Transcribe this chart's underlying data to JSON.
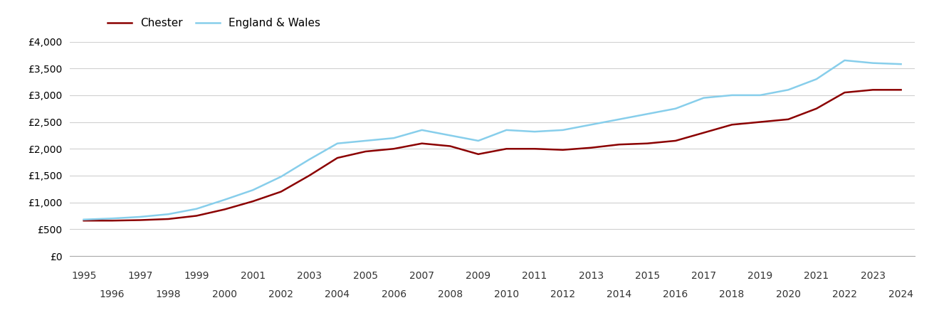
{
  "chester": {
    "years": [
      1995,
      1996,
      1997,
      1998,
      1999,
      2000,
      2001,
      2002,
      2003,
      2004,
      2005,
      2006,
      2007,
      2008,
      2009,
      2010,
      2011,
      2012,
      2013,
      2014,
      2015,
      2016,
      2017,
      2018,
      2019,
      2020,
      2021,
      2022,
      2023,
      2024
    ],
    "values": [
      660,
      660,
      670,
      690,
      750,
      870,
      1020,
      1200,
      1500,
      1830,
      1950,
      2000,
      2100,
      2050,
      1900,
      2000,
      2000,
      1980,
      2020,
      2080,
      2100,
      2150,
      2300,
      2450,
      2500,
      2550,
      2750,
      3050,
      3100,
      3100
    ]
  },
  "england_wales": {
    "years": [
      1995,
      1996,
      1997,
      1998,
      1999,
      2000,
      2001,
      2002,
      2003,
      2004,
      2005,
      2006,
      2007,
      2008,
      2009,
      2010,
      2011,
      2012,
      2013,
      2014,
      2015,
      2016,
      2017,
      2018,
      2019,
      2020,
      2021,
      2022,
      2023,
      2024
    ],
    "values": [
      680,
      700,
      730,
      780,
      880,
      1050,
      1230,
      1480,
      1800,
      2100,
      2150,
      2200,
      2350,
      2250,
      2150,
      2350,
      2320,
      2350,
      2450,
      2550,
      2650,
      2750,
      2950,
      3000,
      3000,
      3100,
      3300,
      3650,
      3600,
      3580
    ]
  },
  "chester_color": "#8b0000",
  "england_wales_color": "#87ceeb",
  "chester_label": "Chester",
  "england_wales_label": "England & Wales",
  "ylim": [
    0,
    4000
  ],
  "yticks": [
    0,
    500,
    1000,
    1500,
    2000,
    2500,
    3000,
    3500,
    4000
  ],
  "ytick_labels": [
    "£0",
    "£500",
    "£1,000",
    "£1,500",
    "£2,000",
    "£2,500",
    "£3,000",
    "£3,500",
    "£4,000"
  ],
  "grid_color": "#d0d0d0",
  "background_color": "#ffffff",
  "line_width": 1.8,
  "legend_fontsize": 11,
  "tick_fontsize": 10,
  "xlim_left": 1994.5,
  "xlim_right": 2024.5
}
